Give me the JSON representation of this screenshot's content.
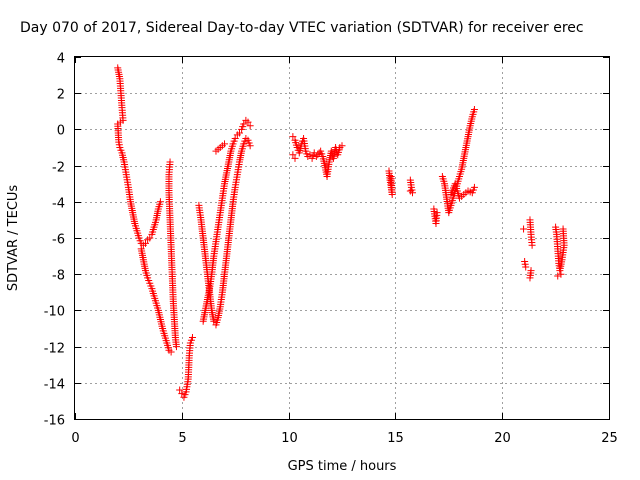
{
  "chart_data": {
    "type": "scatter",
    "title": "Day 070 of 2017, Sidereal Day-to-day VTEC variation (SDTVAR) for receiver erec",
    "xlabel": "GPS time / hours",
    "ylabel": "SDTVAR / TECUs",
    "xlim": [
      0,
      25
    ],
    "ylim": [
      -16,
      4
    ],
    "xticks": [
      "0",
      "5",
      "10",
      "15",
      "20",
      "25"
    ],
    "yticks": [
      "4",
      "2",
      "0",
      "-2",
      "-4",
      "-6",
      "-8",
      "-10",
      "-12",
      "-14",
      "-16"
    ],
    "grid": true,
    "marker": "+",
    "marker_color": "#ff0000",
    "series": [
      {
        "name": "SDTVAR",
        "points": [
          [
            2.0,
            3.4
          ],
          [
            2.1,
            2.8
          ],
          [
            2.15,
            2.0
          ],
          [
            2.2,
            1.2
          ],
          [
            2.25,
            0.5
          ],
          [
            2.0,
            0.3
          ],
          [
            2.05,
            -0.7
          ],
          [
            2.1,
            -1.0
          ],
          [
            2.2,
            -1.3
          ],
          [
            2.3,
            -1.8
          ],
          [
            2.4,
            -2.5
          ],
          [
            2.5,
            -3.2
          ],
          [
            2.6,
            -4.0
          ],
          [
            2.7,
            -4.6
          ],
          [
            2.8,
            -5.2
          ],
          [
            2.9,
            -5.6
          ],
          [
            3.0,
            -6.0
          ],
          [
            3.1,
            -6.3
          ],
          [
            3.2,
            -6.4
          ],
          [
            3.3,
            -6.3
          ],
          [
            3.4,
            -6.1
          ],
          [
            3.5,
            -6.0
          ],
          [
            3.6,
            -5.8
          ],
          [
            3.7,
            -5.4
          ],
          [
            3.8,
            -5.0
          ],
          [
            3.9,
            -4.4
          ],
          [
            4.0,
            -4.0
          ],
          [
            3.1,
            -6.6
          ],
          [
            3.2,
            -7.2
          ],
          [
            3.3,
            -7.8
          ],
          [
            3.4,
            -8.2
          ],
          [
            3.5,
            -8.5
          ],
          [
            3.6,
            -8.8
          ],
          [
            3.7,
            -9.2
          ],
          [
            3.8,
            -9.6
          ],
          [
            3.9,
            -10.0
          ],
          [
            4.0,
            -10.5
          ],
          [
            4.1,
            -11.0
          ],
          [
            4.2,
            -11.4
          ],
          [
            4.3,
            -11.8
          ],
          [
            4.4,
            -12.2
          ],
          [
            4.5,
            -12.3
          ],
          [
            4.45,
            -1.8
          ],
          [
            4.4,
            -2.5
          ],
          [
            4.4,
            -3.5
          ],
          [
            4.45,
            -5.0
          ],
          [
            4.5,
            -6.5
          ],
          [
            4.55,
            -8.0
          ],
          [
            4.6,
            -9.5
          ],
          [
            4.65,
            -10.5
          ],
          [
            4.7,
            -11.5
          ],
          [
            4.75,
            -12.0
          ],
          [
            4.9,
            -14.4
          ],
          [
            5.0,
            -14.6
          ],
          [
            5.1,
            -14.8
          ],
          [
            5.2,
            -14.5
          ],
          [
            5.3,
            -13.8
          ],
          [
            5.35,
            -12.5
          ],
          [
            5.4,
            -11.8
          ],
          [
            5.5,
            -11.5
          ],
          [
            5.8,
            -4.2
          ],
          [
            5.9,
            -5.0
          ],
          [
            6.0,
            -6.0
          ],
          [
            6.1,
            -7.0
          ],
          [
            6.2,
            -8.0
          ],
          [
            6.3,
            -9.0
          ],
          [
            6.4,
            -10.0
          ],
          [
            6.5,
            -10.6
          ],
          [
            6.6,
            -10.8
          ],
          [
            6.7,
            -10.4
          ],
          [
            6.8,
            -9.8
          ],
          [
            6.9,
            -9.0
          ],
          [
            7.0,
            -8.0
          ],
          [
            7.1,
            -7.0
          ],
          [
            7.2,
            -6.0
          ],
          [
            7.3,
            -5.0
          ],
          [
            7.4,
            -4.0
          ],
          [
            7.5,
            -3.2
          ],
          [
            7.6,
            -2.5
          ],
          [
            7.7,
            -1.8
          ],
          [
            7.8,
            -1.2
          ],
          [
            7.9,
            -0.8
          ],
          [
            8.0,
            -0.5
          ],
          [
            8.1,
            -0.6
          ],
          [
            8.2,
            -0.9
          ],
          [
            6.0,
            -10.6
          ],
          [
            6.1,
            -10.0
          ],
          [
            6.2,
            -9.4
          ],
          [
            6.3,
            -8.8
          ],
          [
            6.4,
            -8.0
          ],
          [
            6.5,
            -7.0
          ],
          [
            6.6,
            -6.2
          ],
          [
            6.7,
            -5.4
          ],
          [
            6.8,
            -4.6
          ],
          [
            6.9,
            -3.8
          ],
          [
            7.0,
            -3.0
          ],
          [
            7.1,
            -2.4
          ],
          [
            7.2,
            -1.8
          ],
          [
            7.3,
            -1.2
          ],
          [
            7.4,
            -0.8
          ],
          [
            7.5,
            -0.5
          ],
          [
            7.6,
            -0.3
          ],
          [
            7.7,
            -0.2
          ],
          [
            7.8,
            0.0
          ],
          [
            7.9,
            0.3
          ],
          [
            8.0,
            0.5
          ],
          [
            8.1,
            0.4
          ],
          [
            8.2,
            0.2
          ],
          [
            6.6,
            -1.2
          ],
          [
            6.8,
            -1.0
          ],
          [
            7.0,
            -0.8
          ],
          [
            10.2,
            -0.4
          ],
          [
            10.3,
            -0.6
          ],
          [
            10.4,
            -1.0
          ],
          [
            10.5,
            -1.3
          ],
          [
            10.6,
            -0.8
          ],
          [
            10.7,
            -0.5
          ],
          [
            10.8,
            -1.2
          ],
          [
            10.9,
            -1.5
          ],
          [
            11.0,
            -1.4
          ],
          [
            11.1,
            -1.6
          ],
          [
            11.2,
            -1.3
          ],
          [
            11.3,
            -1.5
          ],
          [
            11.5,
            -1.2
          ],
          [
            11.6,
            -1.5
          ],
          [
            11.7,
            -2.0
          ],
          [
            11.8,
            -2.6
          ],
          [
            11.9,
            -1.8
          ],
          [
            12.0,
            -1.2
          ],
          [
            12.1,
            -1.6
          ],
          [
            12.2,
            -1.0
          ],
          [
            12.3,
            -1.4
          ],
          [
            12.4,
            -1.0
          ],
          [
            12.5,
            -0.9
          ],
          [
            10.2,
            -1.4
          ],
          [
            10.3,
            -1.6
          ],
          [
            14.7,
            -2.3
          ],
          [
            14.75,
            -2.8
          ],
          [
            14.8,
            -3.2
          ],
          [
            14.85,
            -3.6
          ],
          [
            14.8,
            -2.6
          ],
          [
            15.7,
            -2.8
          ],
          [
            15.75,
            -3.2
          ],
          [
            15.8,
            -3.5
          ],
          [
            15.7,
            -3.4
          ],
          [
            16.8,
            -4.4
          ],
          [
            16.85,
            -4.8
          ],
          [
            16.9,
            -5.2
          ],
          [
            16.95,
            -4.6
          ],
          [
            17.2,
            -2.6
          ],
          [
            17.3,
            -3.0
          ],
          [
            17.5,
            -4.6
          ],
          [
            17.6,
            -4.2
          ],
          [
            17.7,
            -3.8
          ],
          [
            17.8,
            -3.4
          ],
          [
            17.9,
            -3.0
          ],
          [
            18.0,
            -2.6
          ],
          [
            18.1,
            -2.2
          ],
          [
            18.2,
            -1.6
          ],
          [
            18.3,
            -1.0
          ],
          [
            18.4,
            -0.4
          ],
          [
            18.5,
            0.2
          ],
          [
            18.6,
            0.7
          ],
          [
            18.7,
            1.1
          ],
          [
            17.6,
            -3.6
          ],
          [
            17.8,
            -3.0
          ],
          [
            18.0,
            -3.8
          ],
          [
            18.2,
            -3.6
          ],
          [
            18.4,
            -3.4
          ],
          [
            18.6,
            -3.5
          ],
          [
            18.7,
            -3.2
          ],
          [
            21.0,
            -5.5
          ],
          [
            21.05,
            -7.3
          ],
          [
            21.1,
            -7.6
          ],
          [
            21.3,
            -5.0
          ],
          [
            21.35,
            -5.8
          ],
          [
            21.4,
            -6.4
          ],
          [
            21.3,
            -8.2
          ],
          [
            21.35,
            -7.8
          ],
          [
            22.5,
            -5.4
          ],
          [
            22.55,
            -5.8
          ],
          [
            22.6,
            -6.6
          ],
          [
            22.65,
            -7.4
          ],
          [
            22.7,
            -7.8
          ],
          [
            22.8,
            -7.2
          ],
          [
            22.9,
            -6.4
          ],
          [
            22.85,
            -5.5
          ],
          [
            22.75,
            -8.0
          ],
          [
            22.6,
            -8.1
          ]
        ]
      }
    ]
  }
}
